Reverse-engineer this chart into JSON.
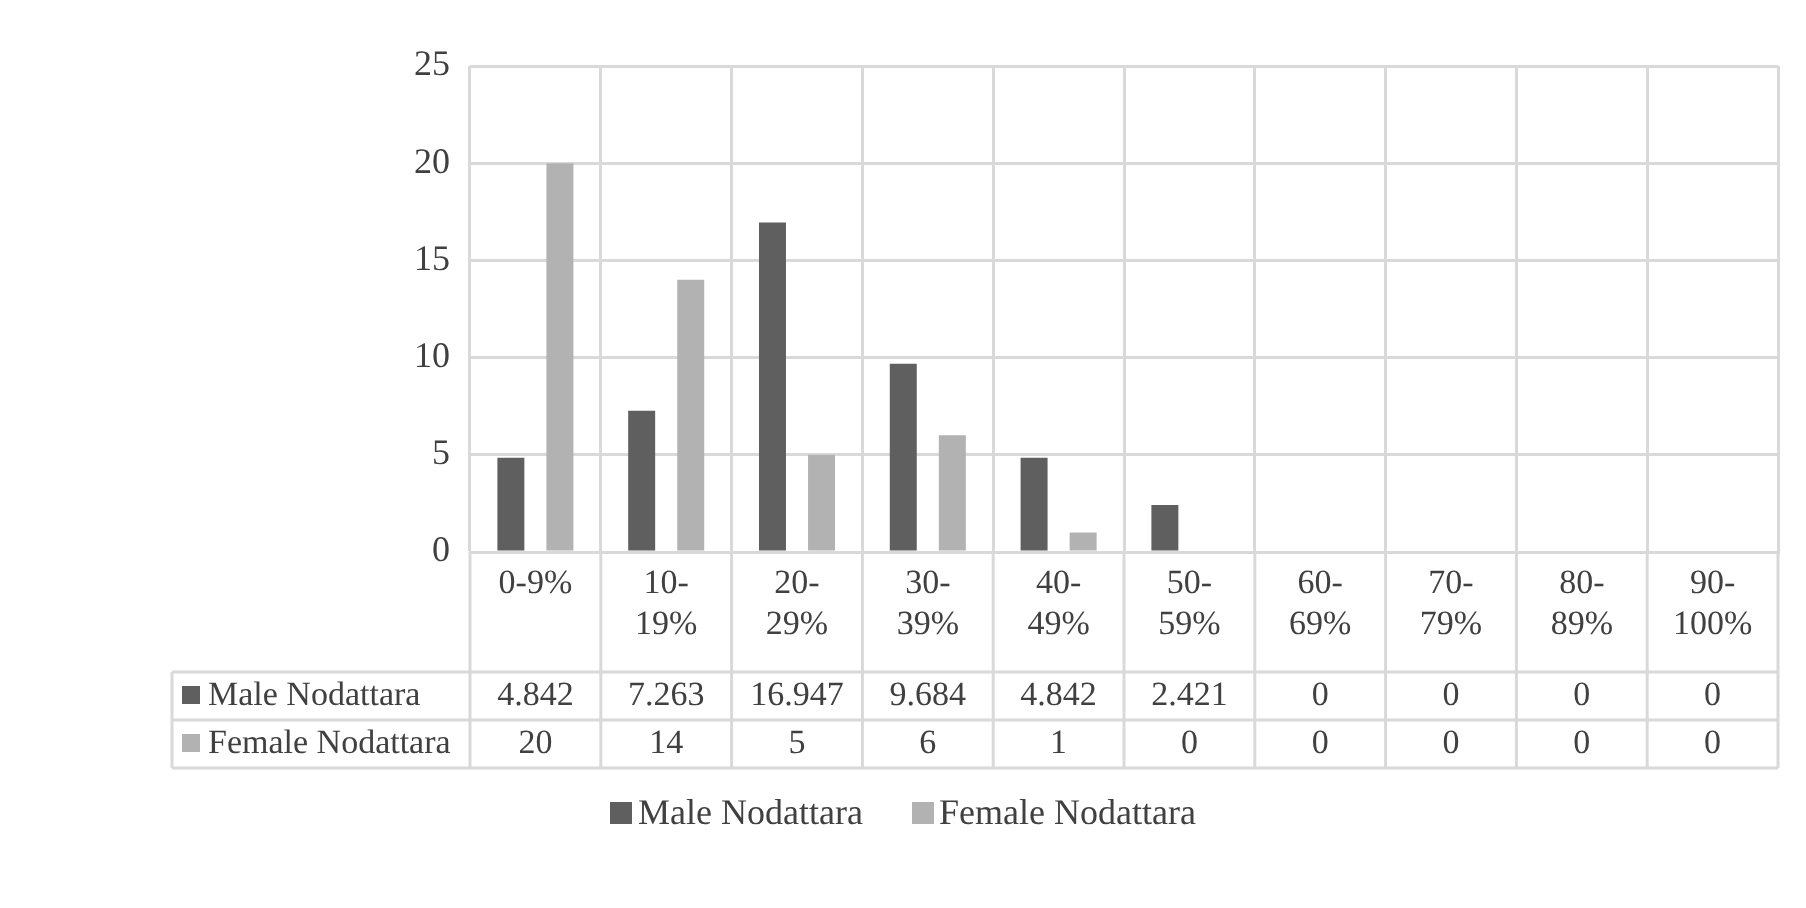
{
  "chart_data": {
    "type": "bar",
    "categories": [
      "0-9%",
      "10-19%",
      "20-29%",
      "30-39%",
      "40-49%",
      "50-59%",
      "60-69%",
      "70-79%",
      "80-89%",
      "90-100%"
    ],
    "series": [
      {
        "name": "Male Nodattara",
        "color": "#5f5f5f",
        "values": [
          4.842,
          7.263,
          16.947,
          9.684,
          4.842,
          2.421,
          0,
          0,
          0,
          0
        ]
      },
      {
        "name": "Female Nodattara",
        "color": "#b2b2b2",
        "values": [
          20,
          14,
          5,
          6,
          1,
          0,
          0,
          0,
          0,
          0
        ]
      }
    ],
    "ylim": [
      0,
      25
    ],
    "yticks": [
      0,
      5,
      10,
      15,
      20,
      25
    ],
    "grid": true,
    "legend": "bottom",
    "data_labels": true
  }
}
